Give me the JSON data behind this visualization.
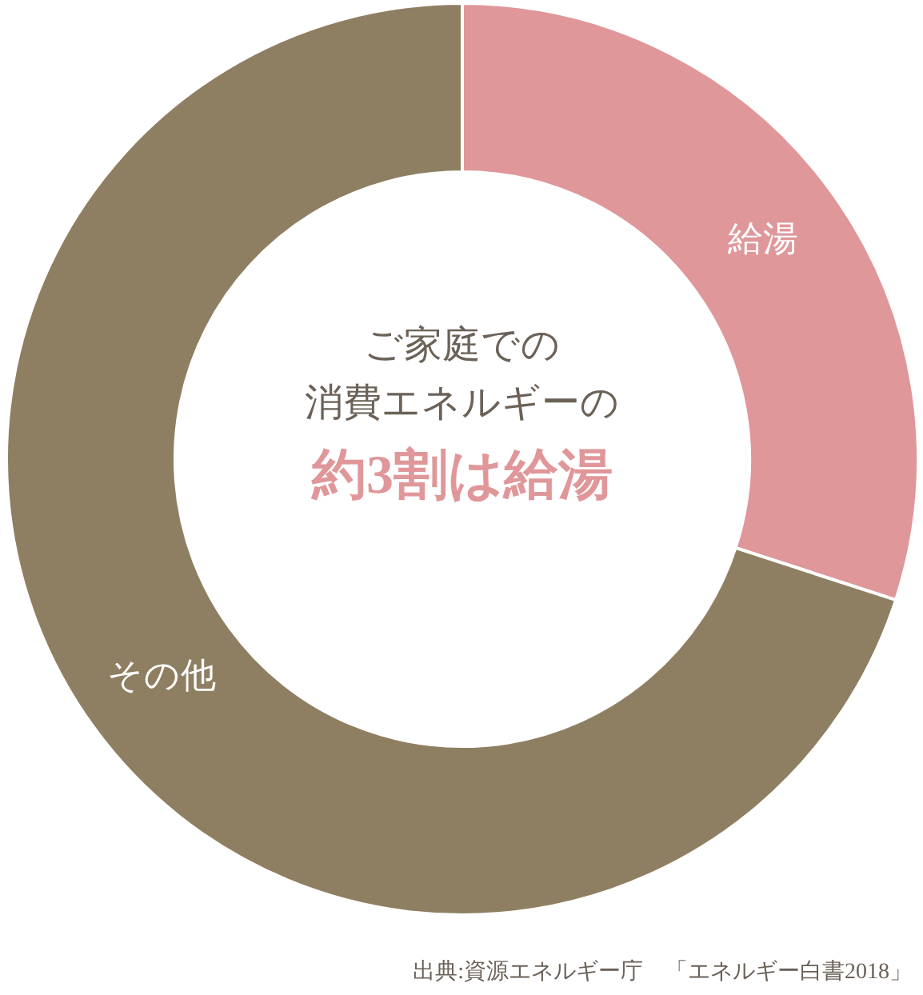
{
  "chart_data": {
    "type": "donut",
    "categories": [
      "給湯",
      "その他"
    ],
    "values": [
      30,
      70
    ],
    "colors": [
      "#e0979a",
      "#8f7f62"
    ],
    "annotations": [
      "ご家庭での",
      "消費エネルギーの",
      "約3割は給湯",
      "出典:資源エネルギー庁　「エネルギー白書2018」"
    ]
  }
}
